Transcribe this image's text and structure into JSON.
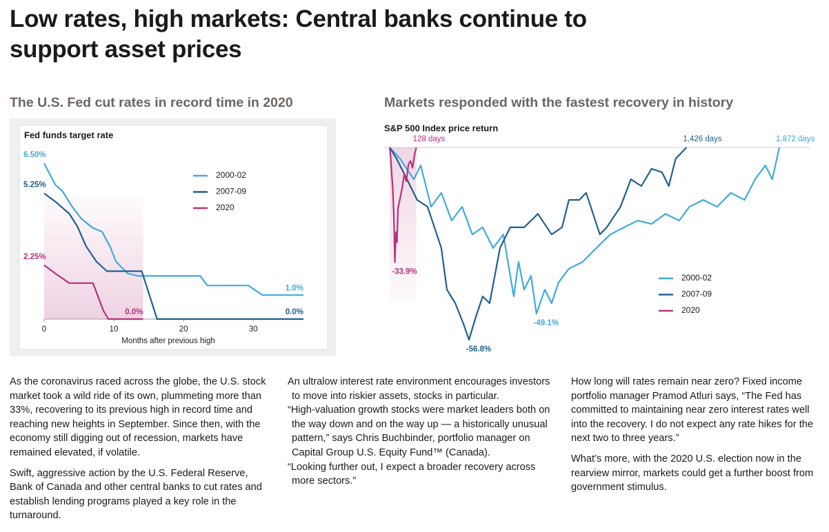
{
  "title": "Low rates, high markets: Central banks continue to support asset prices",
  "chart_data": [
    {
      "type": "line",
      "heading": "The U.S. Fed cut rates in record time in 2020",
      "subtitle": "Fed funds target rate",
      "xlabel": "Months after previous high",
      "xlim": [
        0,
        37.2
      ],
      "ylim": [
        0,
        6.5
      ],
      "xticks": [
        0,
        10,
        20,
        30
      ],
      "series": [
        {
          "name": "2000-02",
          "color": "#3fa9dc",
          "x": [
            0,
            1.6,
            2.6,
            4,
            5.3,
            7,
            8.3,
            9.5,
            10.3,
            12,
            13.5,
            22.4,
            23.4,
            29.3,
            31.3,
            37.2
          ],
          "values": [
            6.5,
            5.6,
            5.35,
            4.7,
            4.2,
            3.8,
            3.65,
            3.0,
            2.4,
            1.9,
            1.8,
            1.8,
            1.4,
            1.4,
            1.0,
            1.0
          ],
          "value_labels": [
            "6.50%",
            null,
            null,
            null,
            null,
            null,
            null,
            null,
            null,
            null,
            null,
            null,
            null,
            null,
            null,
            "1.0%"
          ]
        },
        {
          "name": "2007-09",
          "color": "#1f5f8f",
          "x": [
            0,
            1.6,
            3.6,
            4.8,
            6,
            7.5,
            9,
            14,
            15,
            16.2,
            37.2
          ],
          "values": [
            5.25,
            4.9,
            4.4,
            3.85,
            3.05,
            2.4,
            2.0,
            2.0,
            1.1,
            0,
            0
          ],
          "value_labels": [
            "5.25%",
            null,
            null,
            null,
            null,
            null,
            null,
            null,
            null,
            null,
            "0.0%"
          ]
        },
        {
          "name": "2020",
          "color": "#b5327a",
          "x": [
            0,
            1.6,
            3.6,
            7,
            8.5,
            9.2,
            14.2
          ],
          "values": [
            2.25,
            1.9,
            1.5,
            1.5,
            0.35,
            0,
            0
          ],
          "value_labels": [
            "2.25%",
            null,
            null,
            null,
            null,
            null,
            "0.0%"
          ]
        }
      ]
    },
    {
      "type": "line",
      "heading": "Markets responded with the fastest recovery in history",
      "subtitle": "S&P 500 Index price return",
      "xlim": [
        0,
        1872
      ],
      "ylim": [
        -56.8,
        0
      ],
      "series": [
        {
          "name": "2000-02",
          "color": "#3fa9dc",
          "x": [
            0,
            50,
            116,
            149,
            199,
            248,
            298,
            348,
            397,
            447,
            497,
            546,
            596,
            619,
            646,
            679,
            705,
            745,
            778,
            811,
            861,
            927,
            993,
            1060,
            1126,
            1192,
            1258,
            1325,
            1391,
            1440,
            1507,
            1573,
            1639,
            1705,
            1755,
            1805,
            1838,
            1872
          ],
          "values": [
            0,
            -3.3,
            -9.4,
            -5.3,
            -17.5,
            -13.4,
            -21.6,
            -17.5,
            -25.7,
            -23.6,
            -29.7,
            -25.7,
            -44,
            -33.8,
            -42,
            -37.9,
            -49.1,
            -42,
            -46,
            -39.9,
            -35.8,
            -33.8,
            -29.7,
            -25.7,
            -23.6,
            -21.6,
            -22.6,
            -19.6,
            -21.6,
            -17.5,
            -15.5,
            -17.5,
            -13.4,
            -15.5,
            -9.4,
            -5.3,
            -9.4,
            0
          ],
          "value_labels": [
            null,
            null,
            null,
            null,
            null,
            null,
            null,
            null,
            null,
            null,
            null,
            null,
            null,
            null,
            null,
            null,
            "-49.1%",
            null,
            null,
            null,
            null,
            null,
            null,
            null,
            null,
            null,
            null,
            null,
            null,
            null,
            null,
            null,
            null,
            null,
            null,
            null,
            null,
            null
          ],
          "x_labels": [
            null,
            null,
            null,
            null,
            null,
            null,
            null,
            null,
            null,
            null,
            null,
            null,
            null,
            null,
            null,
            null,
            null,
            null,
            null,
            null,
            null,
            null,
            null,
            null,
            null,
            null,
            null,
            null,
            null,
            null,
            null,
            null,
            null,
            null,
            null,
            null,
            null,
            "1,872 days"
          ]
        },
        {
          "name": "2007-09",
          "color": "#1f5f8f",
          "x": [
            0,
            33,
            83,
            132,
            182,
            215,
            248,
            275,
            315,
            354,
            381,
            414,
            447,
            480,
            530,
            579,
            646,
            712,
            778,
            828,
            861,
            911,
            944,
            977,
            1010,
            1043,
            1109,
            1159,
            1209,
            1258,
            1308,
            1341,
            1374,
            1426
          ],
          "values": [
            0,
            -3.3,
            -9.4,
            -15.5,
            -17.5,
            -23.6,
            -29.7,
            -42,
            -46,
            -52,
            -56.8,
            -50,
            -44,
            -46,
            -29.7,
            -23.6,
            -23.6,
            -19.6,
            -25.7,
            -23.6,
            -15.5,
            -15.5,
            -13.4,
            -19.6,
            -25.7,
            -23.6,
            -17.5,
            -9.4,
            -11.4,
            -6.3,
            -7.3,
            -11.4,
            -3.3,
            0
          ],
          "value_labels": [
            null,
            null,
            null,
            null,
            null,
            null,
            null,
            null,
            null,
            null,
            "-56.8%",
            null,
            null,
            null,
            null,
            null,
            null,
            null,
            null,
            null,
            null,
            null,
            null,
            null,
            null,
            null,
            null,
            null,
            null,
            null,
            null,
            null,
            null,
            null
          ],
          "x_labels": [
            null,
            null,
            null,
            null,
            null,
            null,
            null,
            null,
            null,
            null,
            null,
            null,
            null,
            null,
            null,
            null,
            null,
            null,
            null,
            null,
            null,
            null,
            null,
            null,
            null,
            null,
            null,
            null,
            null,
            null,
            null,
            null,
            null,
            "1,426 days"
          ]
        },
        {
          "name": "2020",
          "color": "#b5327a",
          "x": [
            0,
            5,
            10,
            15,
            20,
            23,
            25,
            30,
            35,
            40,
            50,
            60,
            70,
            80,
            90,
            100,
            110,
            120,
            128
          ],
          "values": [
            0,
            -3,
            -8,
            -12,
            -20,
            -28,
            -33.9,
            -25,
            -28,
            -18,
            -15,
            -12,
            -8,
            -10,
            -5,
            -4,
            -6,
            -2,
            0
          ],
          "value_labels": [
            null,
            null,
            null,
            null,
            null,
            null,
            "-33.9%",
            null,
            null,
            null,
            null,
            null,
            null,
            null,
            null,
            null,
            null,
            null,
            null
          ],
          "x_labels": [
            null,
            null,
            null,
            null,
            null,
            null,
            null,
            null,
            null,
            null,
            null,
            null,
            null,
            null,
            null,
            null,
            null,
            null,
            "128 days"
          ]
        }
      ]
    }
  ],
  "text": {
    "columns": [
      [
        "As the coronavirus raced across the globe, the U.S. stock market took a wild ride of its own, plummeting more than 33%, recovering to its previous high in record time and reaching new heights in September. Since then, with the economy still digging out of recession, markets have remained elevated, if volatile.",
        "Swift, aggressive action by the U.S. Federal Reserve, Bank of Canada and other central banks to cut rates and establish lending programs played a key role in the turnaround."
      ],
      [
        "An ultralow interest rate environment encourages investors to move into riskier assets, stocks in particular.",
        "“High-valuation growth stocks were market leaders both on the way down and on the way up — a historically unusual pattern,” says Chris Buchbinder, portfolio manager on Capital Group U.S. Equity Fund™ (Canada).",
        "“Looking further out, I expect a broader recovery across more sectors.”"
      ],
      [
        "How long will rates remain near zero? Fixed income portfolio manager Pramod Atluri says, “The Fed has committed to maintaining near zero interest rates well into the recovery. I do not expect any rate hikes for the next two to three years.”",
        "What’s more, with the 2020 U.S. election now in the rearview mirror, markets could get a further boost from government stimulus."
      ]
    ]
  }
}
